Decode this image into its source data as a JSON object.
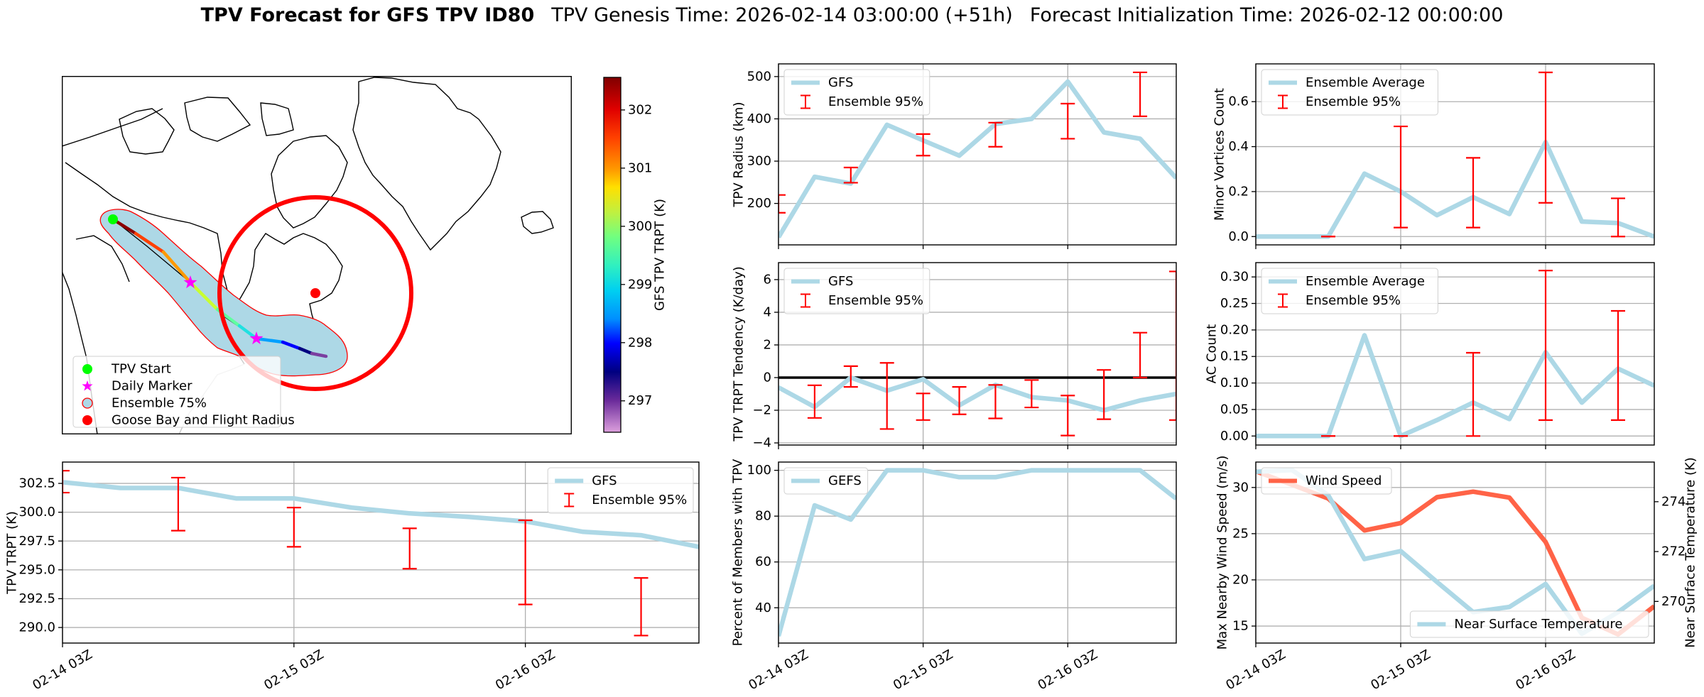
{
  "title": {
    "main": "TPV Forecast for GFS TPV ID80",
    "genesis": "TPV Genesis Time: 2026-02-14 03:00:00 (+51h)",
    "init": "Forecast Initialization Time: 2026-02-12 00:00:00"
  },
  "map": {
    "legend": [
      "TPV Start",
      "Daily Marker",
      "Ensemble 75%",
      "Goose Bay and Flight Radius"
    ],
    "colors": {
      "start": "#00ff00",
      "daily_marker": "#ff00ff",
      "ensemble_fill": "#add8e6",
      "ensemble_edge": "#ff0000",
      "goose_bay": "#ff0000"
    },
    "colorbar": {
      "label": "GFS TPV TRPT (K)",
      "range": [
        296.46,
        302.56
      ],
      "ticks": [
        297,
        298,
        299,
        300,
        301,
        302
      ],
      "tick_labels": [
        "297",
        "298",
        "299",
        "300",
        "301",
        "302"
      ]
    }
  },
  "chart_data": [
    {
      "id": "trpt",
      "type": "line",
      "x": [
        "2026-02-14 03:00",
        "2026-02-14 09:00",
        "2026-02-14 15:00",
        "2026-02-14 21:00",
        "2026-02-15 03:00",
        "2026-02-15 09:00",
        "2026-02-15 15:00",
        "2026-02-15 21:00",
        "2026-02-16 03:00",
        "2026-02-16 09:00",
        "2026-02-16 15:00",
        "2026-02-16 21:00"
      ],
      "xlim": [
        "2026-02-14 03:00",
        "2026-02-16 21:00"
      ],
      "xticks": [
        "2026-02-14 03:00",
        "2026-02-15 03:00",
        "2026-02-16 03:00"
      ],
      "xtick_labels": [
        "02-14 03Z",
        "02-15 03Z",
        "02-16 03Z"
      ],
      "ylabel": "TPV TRPT (K)",
      "ylim": [
        288.65,
        304.35
      ],
      "yticks": [
        290,
        292.5,
        295,
        297.5,
        300,
        302.5
      ],
      "ytick_labels": [
        "290.0",
        "292.5",
        "295.0",
        "297.5",
        "300.0",
        "302.5"
      ],
      "grid": true,
      "series": [
        {
          "name": "GFS",
          "color": "#add8e6",
          "values": [
            302.6,
            302.1,
            302.1,
            301.2,
            301.2,
            300.4,
            299.9,
            299.6,
            299.2,
            298.3,
            298.0,
            297.0
          ]
        }
      ],
      "errorbars": {
        "name": "Ensemble 95%",
        "color": "#ff0000",
        "low": [
          301.7,
          null,
          298.4,
          null,
          297.0,
          null,
          295.1,
          null,
          292.0,
          null,
          289.3,
          null
        ],
        "high": [
          303.6,
          null,
          303.0,
          null,
          300.4,
          null,
          298.6,
          null,
          299.3,
          null,
          294.3,
          null
        ]
      },
      "legend": "upper right"
    },
    {
      "id": "radius",
      "type": "line",
      "x": [
        "2026-02-14 03:00",
        "2026-02-14 09:00",
        "2026-02-14 15:00",
        "2026-02-14 21:00",
        "2026-02-15 03:00",
        "2026-02-15 09:00",
        "2026-02-15 15:00",
        "2026-02-15 21:00",
        "2026-02-16 03:00",
        "2026-02-16 09:00",
        "2026-02-16 15:00",
        "2026-02-16 21:00"
      ],
      "xlim": [
        "2026-02-14 03:00",
        "2026-02-16 21:00"
      ],
      "xticks": [
        "2026-02-14 03:00",
        "2026-02-15 03:00",
        "2026-02-16 03:00"
      ],
      "ylabel": "TPV Radius (km)",
      "ylim": [
        102,
        530
      ],
      "yticks": [
        200,
        300,
        400,
        500
      ],
      "ytick_labels": [
        "200",
        "300",
        "400",
        "500"
      ],
      "grid": true,
      "series": [
        {
          "name": "GFS",
          "color": "#add8e6",
          "values": [
            120,
            263,
            247,
            386,
            349,
            313,
            388,
            400,
            488,
            368,
            353,
            260
          ]
        }
      ],
      "errorbars": {
        "name": "Ensemble 95%",
        "color": "#ff0000",
        "low": [
          178,
          null,
          249,
          null,
          313,
          null,
          334,
          null,
          353,
          null,
          406,
          null
        ],
        "high": [
          220,
          null,
          285,
          null,
          364,
          null,
          391,
          null,
          436,
          null,
          510,
          null
        ]
      },
      "legend": "upper left"
    },
    {
      "id": "tendency",
      "type": "line",
      "x": [
        "2026-02-14 03:00",
        "2026-02-14 09:00",
        "2026-02-14 15:00",
        "2026-02-14 21:00",
        "2026-02-15 03:00",
        "2026-02-15 09:00",
        "2026-02-15 15:00",
        "2026-02-15 21:00",
        "2026-02-16 03:00",
        "2026-02-16 09:00",
        "2026-02-16 15:00",
        "2026-02-16 21:00"
      ],
      "xlim": [
        "2026-02-14 03:00",
        "2026-02-16 21:00"
      ],
      "xticks": [
        "2026-02-14 03:00",
        "2026-02-15 03:00",
        "2026-02-16 03:00"
      ],
      "ylabel": "TPV TRPT Tendency (K/day)",
      "ylim": [
        -4.13,
        7.04
      ],
      "yticks": [
        -4,
        -2,
        0,
        2,
        4,
        6
      ],
      "ytick_labels": [
        "−4",
        "−2",
        "0",
        "2",
        "4",
        "6"
      ],
      "grid": true,
      "hline": 0,
      "series": [
        {
          "name": "GFS",
          "color": "#add8e6",
          "values": [
            -0.6,
            -1.8,
            0.0,
            -0.8,
            -0.1,
            -1.7,
            -0.45,
            -1.2,
            -1.4,
            -2.0,
            -1.4,
            -1.0
          ]
        }
      ],
      "errorbars": {
        "name": "Ensemble 95%",
        "color": "#ff0000",
        "low": [
          null,
          -2.47,
          -0.57,
          -3.15,
          -2.6,
          -2.25,
          -2.5,
          -1.83,
          -3.55,
          -2.55,
          0.0,
          -2.6
        ],
        "high": [
          null,
          -0.47,
          0.7,
          0.9,
          -0.97,
          -0.57,
          -0.45,
          -0.15,
          -1.1,
          0.47,
          2.75,
          6.5
        ]
      },
      "legend": "upper left"
    },
    {
      "id": "percent",
      "type": "line",
      "x": [
        "2026-02-14 03:00",
        "2026-02-14 09:00",
        "2026-02-14 15:00",
        "2026-02-14 21:00",
        "2026-02-15 03:00",
        "2026-02-15 09:00",
        "2026-02-15 15:00",
        "2026-02-15 21:00",
        "2026-02-16 03:00",
        "2026-02-16 09:00",
        "2026-02-16 15:00",
        "2026-02-16 21:00"
      ],
      "xlim": [
        "2026-02-14 03:00",
        "2026-02-16 21:00"
      ],
      "xticks": [
        "2026-02-14 03:00",
        "2026-02-15 03:00",
        "2026-02-16 03:00"
      ],
      "xtick_labels": [
        "02-14 03Z",
        "02-15 03Z",
        "02-16 03Z"
      ],
      "ylabel": "Percent of Members with TPV",
      "ylim": [
        24.6,
        103.6
      ],
      "yticks": [
        40,
        60,
        80,
        100
      ],
      "ytick_labels": [
        "40",
        "60",
        "80",
        "100"
      ],
      "grid": true,
      "series": [
        {
          "name": "GEFS",
          "color": "#add8e6",
          "values": [
            27.6,
            84.7,
            78.5,
            100,
            100,
            97,
            97,
            100,
            100,
            100,
            100,
            87.6
          ]
        }
      ],
      "legend": "upper left"
    },
    {
      "id": "minor",
      "type": "line",
      "x": [
        "2026-02-14 03:00",
        "2026-02-14 09:00",
        "2026-02-14 15:00",
        "2026-02-14 21:00",
        "2026-02-15 03:00",
        "2026-02-15 09:00",
        "2026-02-15 15:00",
        "2026-02-15 21:00",
        "2026-02-16 03:00",
        "2026-02-16 09:00",
        "2026-02-16 15:00",
        "2026-02-16 21:00"
      ],
      "xlim": [
        "2026-02-14 03:00",
        "2026-02-16 21:00"
      ],
      "xticks": [
        "2026-02-14 03:00",
        "2026-02-15 03:00",
        "2026-02-16 03:00"
      ],
      "ylabel": "Minor Vortices Count",
      "ylim": [
        -0.037,
        0.768
      ],
      "yticks": [
        0,
        0.2,
        0.4,
        0.6
      ],
      "ytick_labels": [
        "0.0",
        "0.2",
        "0.4",
        "0.6"
      ],
      "grid": true,
      "series": [
        {
          "name": "Ensemble Average",
          "color": "#add8e6",
          "values": [
            0,
            0,
            0,
            0.28,
            0.2,
            0.095,
            0.175,
            0.1,
            0.42,
            0.067,
            0.06,
            0
          ]
        }
      ],
      "errorbars": {
        "name": "Ensemble 95%",
        "color": "#ff0000",
        "low": [
          null,
          null,
          0,
          null,
          0.04,
          null,
          0.04,
          null,
          0.15,
          null,
          0,
          null
        ],
        "high": [
          null,
          null,
          0,
          null,
          0.49,
          null,
          0.35,
          null,
          0.73,
          null,
          0.17,
          null
        ]
      },
      "legend": "upper left"
    },
    {
      "id": "ac",
      "type": "line",
      "x": [
        "2026-02-14 03:00",
        "2026-02-14 09:00",
        "2026-02-14 15:00",
        "2026-02-14 21:00",
        "2026-02-15 03:00",
        "2026-02-15 09:00",
        "2026-02-15 15:00",
        "2026-02-15 21:00",
        "2026-02-16 03:00",
        "2026-02-16 09:00",
        "2026-02-16 15:00",
        "2026-02-16 21:00"
      ],
      "xlim": [
        "2026-02-14 03:00",
        "2026-02-16 21:00"
      ],
      "xticks": [
        "2026-02-14 03:00",
        "2026-02-15 03:00",
        "2026-02-16 03:00"
      ],
      "ylabel": "AC Count",
      "ylim": [
        -0.017,
        0.327
      ],
      "yticks": [
        0,
        0.05,
        0.1,
        0.15,
        0.2,
        0.25,
        0.3
      ],
      "ytick_labels": [
        "0.00",
        "0.05",
        "0.10",
        "0.15",
        "0.20",
        "0.25",
        "0.30"
      ],
      "grid": true,
      "series": [
        {
          "name": "Ensemble Average",
          "color": "#add8e6",
          "values": [
            0,
            0,
            0,
            0.19,
            0,
            0.03,
            0.063,
            0.032,
            0.158,
            0.063,
            0.127,
            0.095
          ]
        }
      ],
      "errorbars": {
        "name": "Ensemble 95%",
        "color": "#ff0000",
        "low": [
          null,
          null,
          0,
          null,
          0,
          null,
          0,
          null,
          0.03,
          null,
          0.03,
          null
        ],
        "high": [
          null,
          null,
          0,
          null,
          0,
          null,
          0.157,
          null,
          0.312,
          null,
          0.236,
          null
        ]
      },
      "legend": "upper left"
    },
    {
      "id": "wind",
      "type": "line",
      "x": [
        "2026-02-14 03:00",
        "2026-02-14 09:00",
        "2026-02-14 15:00",
        "2026-02-14 21:00",
        "2026-02-15 03:00",
        "2026-02-15 09:00",
        "2026-02-15 15:00",
        "2026-02-15 21:00",
        "2026-02-16 03:00",
        "2026-02-16 09:00",
        "2026-02-16 15:00",
        "2026-02-16 21:00"
      ],
      "xlim": [
        "2026-02-14 03:00",
        "2026-02-16 21:00"
      ],
      "xticks": [
        "2026-02-14 03:00",
        "2026-02-15 03:00",
        "2026-02-16 03:00"
      ],
      "xtick_labels": [
        "02-14 03Z",
        "02-15 03Z",
        "02-16 03Z"
      ],
      "ylabel": "Max Nearby Wind Speed (m/s)",
      "axis_color": "#ff6347",
      "ylim": [
        13.16,
        32.75
      ],
      "yticks": [
        15,
        20,
        25,
        30
      ],
      "ytick_labels": [
        "15",
        "20",
        "25",
        "30"
      ],
      "grid": true,
      "series": [
        {
          "name": "Wind Speed",
          "color": "#ff6347",
          "values": [
            31.75,
            30.3,
            28.8,
            25.35,
            26.15,
            28.95,
            29.55,
            28.9,
            24.1,
            15.9,
            14.1,
            17.15
          ]
        }
      ],
      "legend": "upper left",
      "twin": {
        "ylabel": "Near Surface Temperature (K)",
        "axis_color": "#4169e1",
        "ylim": [
          268.33,
          275.59
        ],
        "yticks": [
          270,
          272,
          274
        ],
        "ytick_labels": [
          "270",
          "272",
          "274"
        ],
        "series": [
          {
            "name": "Near Surface Temperature",
            "color": "#add8e6",
            "values": [
              275.2,
              275.27,
              274.26,
              271.7,
              272.02,
              270.78,
              269.57,
              269.78,
              270.7,
              268.7,
              269.57,
              270.63
            ]
          }
        ],
        "legend": "lower right"
      }
    }
  ]
}
